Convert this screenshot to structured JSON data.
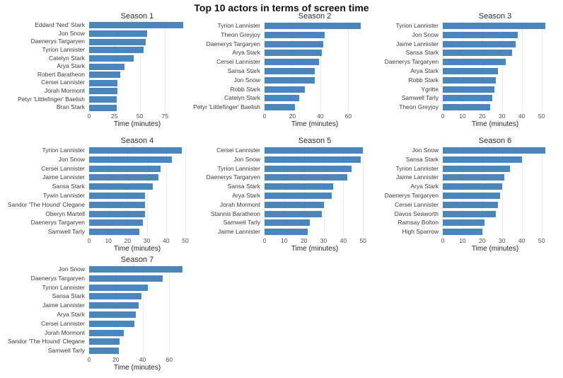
{
  "page": {
    "title": "Top 10 actors in terms of screen time"
  },
  "colors": {
    "bar": "#4a86bc",
    "grid": "#eaeaea",
    "text": "#3a3a3a"
  },
  "chart_data": [
    {
      "type": "bar",
      "orientation": "horizontal",
      "title": "Season 1",
      "categories": [
        "Eddard 'Ned' Stark",
        "Jon Snow",
        "Daenerys Targaryen",
        "Tyrion Lannister",
        "Catelyn Stark",
        "Arya Stark",
        "Robert Baratheon",
        "Cersei Lannister",
        "Jorah Mormont",
        "Petyr 'Littlefinger' Baelish",
        "Bran Stark"
      ],
      "values": [
        93,
        57,
        56,
        54,
        44,
        35,
        31,
        28,
        28,
        27,
        27
      ],
      "xlabel": "Time (minutes)",
      "xticks": [
        0,
        25,
        50,
        75
      ],
      "xlim": [
        0,
        95
      ],
      "grid": true
    },
    {
      "type": "bar",
      "orientation": "horizontal",
      "title": "Season 2",
      "categories": [
        "Tyrion Lannister",
        "Theon Greyjoy",
        "Daenerys Targaryen",
        "Arya Stark",
        "Cersei Lannister",
        "Sansa Stark",
        "Jon Snow",
        "Robb Stark",
        "Catelyn Stark",
        "Petyr 'Littlefinger' Baelish"
      ],
      "values": [
        69,
        43,
        42,
        41,
        39,
        36,
        36,
        29,
        25,
        22
      ],
      "xlabel": "Time (minutes)",
      "xticks": [
        0,
        20,
        40,
        60
      ],
      "xlim": [
        0,
        72
      ],
      "grid": true
    },
    {
      "type": "bar",
      "orientation": "horizontal",
      "title": "Season 3",
      "categories": [
        "Tyrion Lannister",
        "Jon Snow",
        "Jaime Lannister",
        "Sansa Stark",
        "Daenerys Targaryen",
        "Arya Stark",
        "Robb Stark",
        "Ygritte",
        "Samwell Tarly",
        "Theon Greyjoy"
      ],
      "values": [
        52,
        38,
        37,
        35,
        32,
        28,
        27,
        26,
        25,
        24
      ],
      "xlabel": "Time (minutes)",
      "xticks": [
        0,
        10,
        20,
        30,
        40,
        50
      ],
      "xlim": [
        0,
        53
      ],
      "grid": true
    },
    {
      "type": "bar",
      "orientation": "horizontal",
      "title": "Season 4",
      "categories": [
        "Tyrion Lannister",
        "Jon Snow",
        "Cersei Lannister",
        "Jaime Lannister",
        "Sansa Stark",
        "Tywin Lannister",
        "Sandor 'The Hound' Clegane",
        "Oberyn Martell",
        "Daenerys Targaryen",
        "Samwell Tarly"
      ],
      "values": [
        48,
        43,
        37,
        36,
        33,
        29,
        29,
        29,
        28,
        26
      ],
      "xlabel": "Time (minutes)",
      "xticks": [
        0,
        10,
        20,
        30,
        40,
        50
      ],
      "xlim": [
        0,
        50
      ],
      "grid": true
    },
    {
      "type": "bar",
      "orientation": "horizontal",
      "title": "Season 5",
      "categories": [
        "Cersei Lannister",
        "Jon Snow",
        "Tyrion Lannister",
        "Daenerys Targaryen",
        "Sansa Stark",
        "Arya Stark",
        "Jorah Mormont",
        "Stannis Baratheon",
        "Samwell Tarly",
        "Jaime Lannister"
      ],
      "values": [
        50,
        49,
        44,
        42,
        35,
        34,
        30,
        29,
        23,
        22
      ],
      "xlabel": "Time (minutes)",
      "xticks": [
        0,
        10,
        20,
        30,
        40,
        50
      ],
      "xlim": [
        0,
        51
      ],
      "grid": true
    },
    {
      "type": "bar",
      "orientation": "horizontal",
      "title": "Season 6",
      "categories": [
        "Jon Snow",
        "Sansa Stark",
        "Tyrion Lannister",
        "Jaime Lannister",
        "Arya Stark",
        "Daenerys Targaryen",
        "Cersei Lannister",
        "Davos Seaworth",
        "Ramsay Bolton",
        "High Sparrow"
      ],
      "values": [
        52,
        40,
        34,
        31,
        30,
        29,
        28,
        27,
        21,
        20
      ],
      "xlabel": "Time (minutes)",
      "xticks": [
        0,
        10,
        20,
        30,
        40,
        50
      ],
      "xlim": [
        0,
        53
      ],
      "grid": true
    },
    {
      "type": "bar",
      "orientation": "horizontal",
      "title": "Season 7",
      "categories": [
        "Jon Snow",
        "Daenerys Targaryen",
        "Tyrion Lannister",
        "Sansa Stark",
        "Jaime Lannister",
        "Arya Stark",
        "Cersei Lannister",
        "Jorah Mormont",
        "Sandor 'The Hound' Clegane",
        "Samwell Tarly"
      ],
      "values": [
        70,
        55,
        44,
        39,
        37,
        35,
        34,
        26,
        23,
        22
      ],
      "xlabel": "Time (minutes)",
      "xticks": [
        0,
        20,
        40,
        60
      ],
      "xlim": [
        0,
        72
      ],
      "grid": true
    }
  ]
}
